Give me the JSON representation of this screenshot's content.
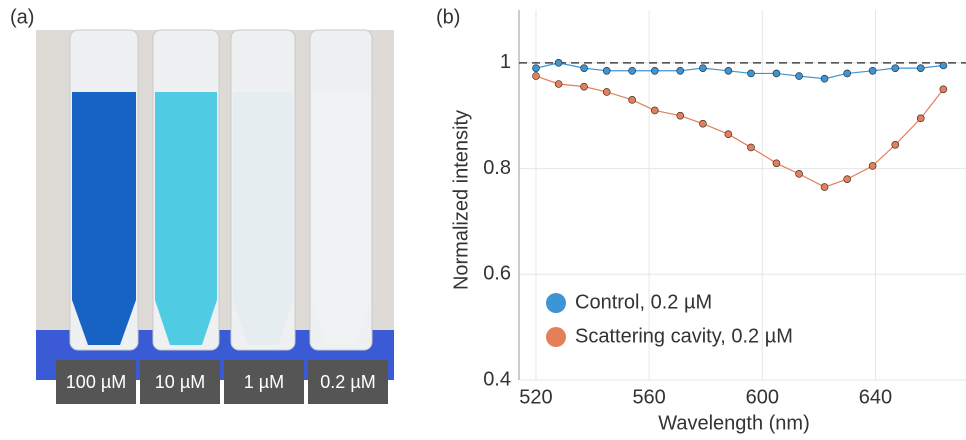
{
  "panel_labels": [
    "(a)",
    "(b)"
  ],
  "photo": {
    "labels": [
      "100 µM",
      "10 µM",
      "1 µM",
      "0.2 µM"
    ]
  },
  "chart_data": {
    "type": "line",
    "xlabel": "Wavelength (nm)",
    "ylabel": "Normalized intensity",
    "x": [
      520,
      528,
      537,
      545,
      554,
      562,
      571,
      579,
      588,
      596,
      605,
      613,
      622,
      630,
      639,
      647,
      656,
      664
    ],
    "series": [
      {
        "name": "Control, 0.2 µM",
        "color": "#3d95d3",
        "values": [
          0.99,
          1.0,
          0.99,
          0.985,
          0.985,
          0.985,
          0.985,
          0.99,
          0.985,
          0.98,
          0.98,
          0.975,
          0.97,
          0.98,
          0.985,
          0.99,
          0.99,
          0.995
        ]
      },
      {
        "name": "Scattering cavity, 0.2 µM",
        "color": "#e47f5a",
        "values": [
          0.975,
          0.96,
          0.955,
          0.945,
          0.93,
          0.91,
          0.9,
          0.885,
          0.865,
          0.84,
          0.81,
          0.79,
          0.765,
          0.78,
          0.805,
          0.845,
          0.895,
          0.95
        ]
      }
    ],
    "reference_line": 1,
    "xlim": [
      514,
      672
    ],
    "xticks": [
      520,
      560,
      600,
      640
    ],
    "ylim": [
      0.4,
      1.1
    ],
    "yticks": [
      0.4,
      0.6,
      0.8,
      1
    ],
    "grid": true,
    "legend": "lower-left"
  }
}
